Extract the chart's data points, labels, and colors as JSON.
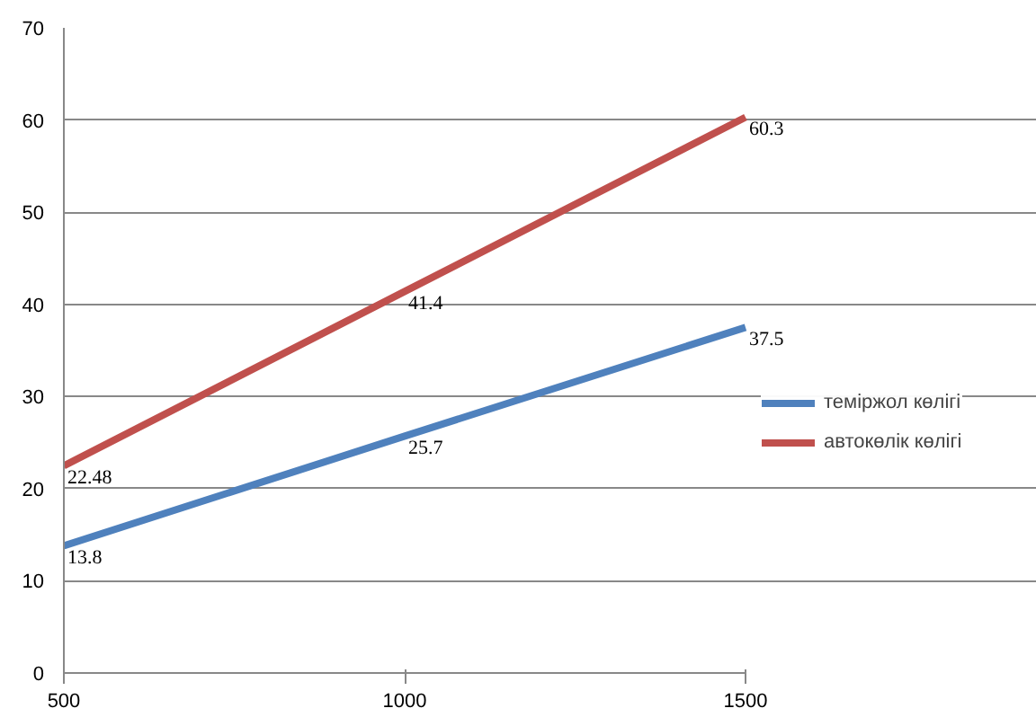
{
  "chart_data": {
    "type": "line",
    "x": [
      500,
      1000,
      1500
    ],
    "series": [
      {
        "name": "теміржол көлігі",
        "color": "#4f81bd",
        "values": [
          13.8,
          25.7,
          37.5
        ]
      },
      {
        "name": "автокөлік көлігі",
        "color": "#c0504d",
        "values": [
          22.48,
          41.4,
          60.3
        ]
      }
    ],
    "xlim": [
      500,
      1500
    ],
    "xticks": [
      500,
      1000,
      1500
    ],
    "ylim": [
      0,
      70
    ],
    "yticks": [
      0,
      10,
      20,
      30,
      40,
      50,
      60,
      70
    ],
    "grid": "y",
    "legend": "right",
    "data_labels": true,
    "marker": "none",
    "line_style": "solid"
  }
}
